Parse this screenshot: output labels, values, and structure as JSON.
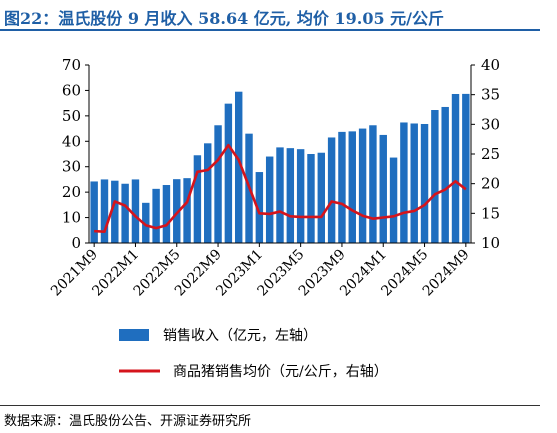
{
  "title": "图22：温氏股份 9 月收入 58.64 亿元, 均价 19.05 元/公斤",
  "source": "数据来源：温氏股份公告、开源证券研究所",
  "colors": {
    "title": "#1F5FA6",
    "bar": "#1F6EBF",
    "line": "#D5141C"
  },
  "chart_data": {
    "type": "bar",
    "title": "",
    "categories": [
      "2021M9",
      "2021M10",
      "2021M11",
      "2021M12",
      "2022M1",
      "2022M2",
      "2022M3",
      "2022M4",
      "2022M5",
      "2022M6",
      "2022M7",
      "2022M8",
      "2022M9",
      "2022M10",
      "2022M11",
      "2022M12",
      "2023M1",
      "2023M2",
      "2023M3",
      "2023M4",
      "2023M5",
      "2023M6",
      "2023M7",
      "2023M8",
      "2023M9",
      "2023M10",
      "2023M11",
      "2023M12",
      "2024M1",
      "2024M2",
      "2024M3",
      "2024M4",
      "2024M5",
      "2024M6",
      "2024M7",
      "2024M8",
      "2024M9"
    ],
    "x_tick_labels": [
      "2021M9",
      "2022M1",
      "2022M5",
      "2022M9",
      "2023M1",
      "2023M5",
      "2023M9",
      "2024M1",
      "2024M5",
      "2024M9"
    ],
    "series": [
      {
        "name": "销售收入（亿元，左轴）",
        "type": "bar",
        "axis": "left",
        "values": [
          24.2,
          25.0,
          24.5,
          23.3,
          25.0,
          15.8,
          21.3,
          22.8,
          25.1,
          25.5,
          34.5,
          39.2,
          46.3,
          54.8,
          59.5,
          43.0,
          27.9,
          34.0,
          37.6,
          37.3,
          36.9,
          35.0,
          35.5,
          41.5,
          43.7,
          43.9,
          45.0,
          46.3,
          42.5,
          33.6,
          47.4,
          47.0,
          46.8,
          52.3,
          53.5,
          58.6,
          58.64
        ]
      },
      {
        "name": "商品猪销售均价（元/公斤，右轴）",
        "type": "line",
        "axis": "right",
        "values": [
          12.0,
          11.9,
          17.0,
          16.3,
          14.5,
          13.0,
          12.5,
          13.0,
          15.0,
          16.9,
          22.0,
          22.3,
          24.0,
          26.5,
          24.0,
          19.5,
          15.0,
          14.9,
          15.3,
          14.5,
          14.4,
          14.4,
          14.4,
          17.0,
          16.6,
          15.5,
          14.6,
          14.1,
          14.3,
          14.5,
          15.1,
          15.4,
          16.4,
          18.2,
          19.0,
          20.4,
          19.05
        ]
      }
    ],
    "y_left": {
      "ylim": [
        0,
        70
      ],
      "ticks": [
        0,
        10,
        20,
        30,
        40,
        50,
        60,
        70
      ]
    },
    "y_right": {
      "ylim": [
        10,
        40
      ],
      "ticks": [
        10,
        15,
        20,
        25,
        30,
        35,
        40
      ]
    },
    "legend_position": "bottom",
    "grid": false
  }
}
